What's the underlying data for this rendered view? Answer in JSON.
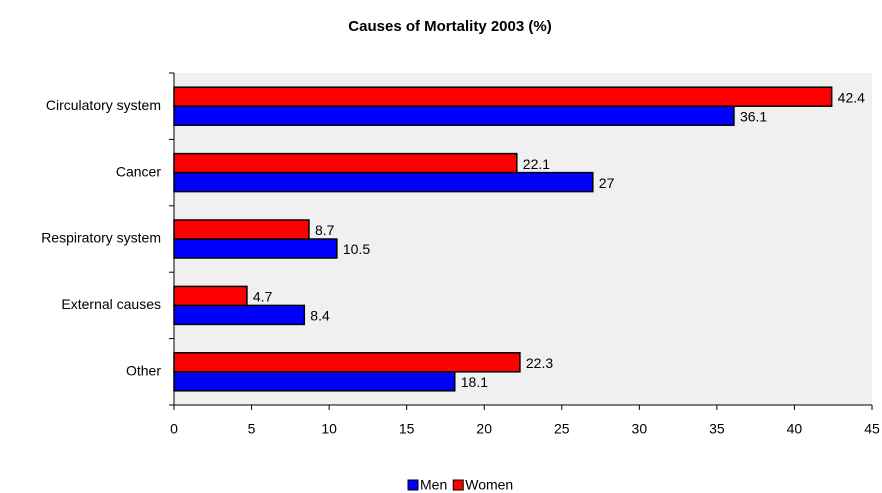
{
  "chart_data": {
    "type": "hbar",
    "title": "Causes of Mortality 2003 (%)",
    "categories": [
      "Circulatory system",
      "Cancer",
      "Respiratory system",
      "External causes",
      "Other"
    ],
    "series": [
      {
        "name": "Men",
        "color": "#0000ff",
        "values": [
          36.1,
          27,
          10.5,
          8.4,
          18.1
        ]
      },
      {
        "name": "Women",
        "color": "#ff0000",
        "values": [
          42.4,
          22.1,
          8.7,
          4.7,
          22.3
        ]
      }
    ],
    "xlim": [
      0,
      45
    ],
    "xticks": [
      0,
      5,
      10,
      15,
      20,
      25,
      30,
      35,
      40,
      45
    ],
    "legend": "bottom"
  }
}
